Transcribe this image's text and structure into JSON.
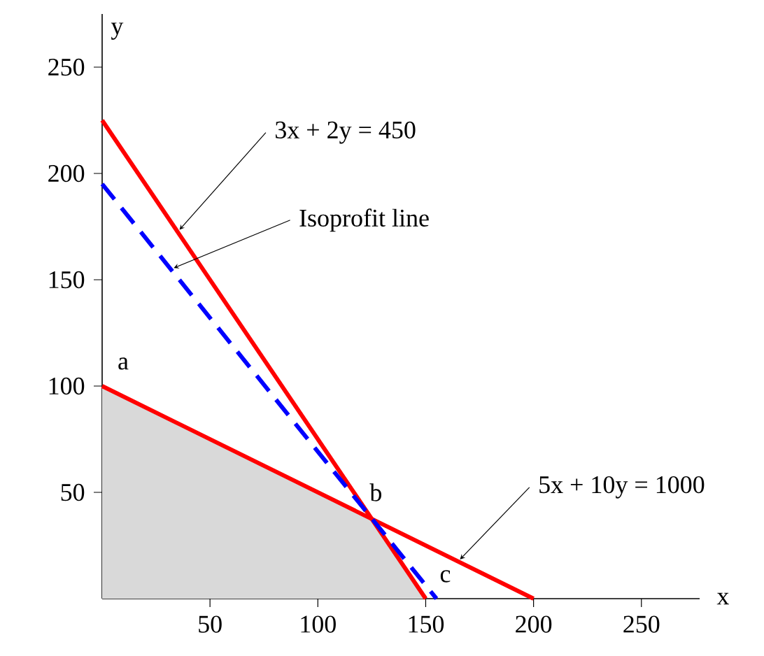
{
  "chart_data": {
    "type": "line",
    "xlabel": "x",
    "ylabel": "y",
    "xlim": [
      0,
      277
    ],
    "ylim": [
      0,
      275
    ],
    "xticks": [
      50,
      100,
      150,
      200,
      250
    ],
    "yticks": [
      50,
      100,
      150,
      200,
      250
    ],
    "marker": "none",
    "series": [
      {
        "type": "area",
        "color": "#d9d9d9",
        "x": [
          0,
          125,
          150
        ],
        "values": [
          100,
          37.5,
          0
        ]
      },
      {
        "color": "#ff0000",
        "line_style": "solid",
        "x": [
          0,
          150
        ],
        "values": [
          225,
          0
        ]
      },
      {
        "color": "#ff0000",
        "line_style": "solid",
        "x": [
          0,
          200
        ],
        "values": [
          100,
          0
        ]
      },
      {
        "color": "#0000ff",
        "line_style": "dashed",
        "x": [
          0,
          155
        ],
        "values": [
          195,
          0
        ]
      }
    ],
    "annotations": [
      {
        "text": "a",
        "x": 0,
        "y": 100
      },
      {
        "text": "b",
        "x": 125,
        "y": 37.5
      },
      {
        "text": "c",
        "x": 150,
        "y": 0
      },
      {
        "text": "3x + 2y = 450",
        "x": 35,
        "y": 172.5
      },
      {
        "text": "Isoprofit line",
        "x": 32,
        "y": 155
      },
      {
        "text": "5x + 10y = 1000",
        "x": 165,
        "y": 17.5
      }
    ]
  }
}
